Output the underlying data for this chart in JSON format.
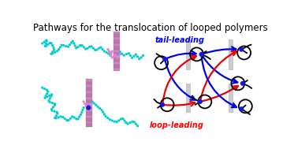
{
  "title": "Pathways for the translocation of looped polymers",
  "title_fontsize": 8.5,
  "title_color": "black",
  "bg_color": "white",
  "tail_leading_label": "tail-leading",
  "tail_leading_color": "#0000FF",
  "loop_leading_label": "loop-leading",
  "loop_leading_color": "#FF0000",
  "polymer_cyan": "#00CCCC",
  "polymer_pink": "#DD88CC",
  "node_color": "#1414EE",
  "arrow_blue": "#0000EE",
  "arrow_red": "#EE0000",
  "pore_membrane_color": "#C8CDD2",
  "pore_membrane_edge": "#A8ADB2",
  "sim_pore_colors": [
    "#D090C0",
    "#C888B8",
    "#C078B0",
    "#D090C0",
    "#C888B8"
  ],
  "line_color": "black",
  "lw_schema": 1.3,
  "lw_arrow": 1.6,
  "node_r": 3.0,
  "loop_r": 11
}
